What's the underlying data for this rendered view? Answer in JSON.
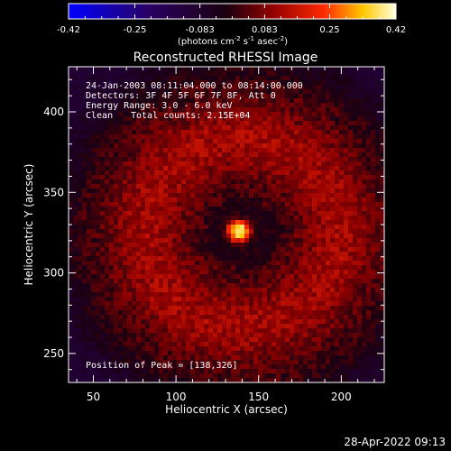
{
  "chart_data": {
    "type": "heatmap",
    "title": "Reconstructed RHESSI Image",
    "xlabel": "Heliocentric X (arcsec)",
    "ylabel": "Heliocentric Y (arcsec)",
    "xlim": [
      35,
      226
    ],
    "ylim": [
      232,
      428
    ],
    "x_ticks": [
      50,
      100,
      150,
      200
    ],
    "y_ticks": [
      250,
      300,
      350,
      400
    ],
    "colorbar": {
      "min": -0.42,
      "max": 0.42,
      "ticks": [
        "-0.42",
        "-0.25",
        "-0.083",
        "0.083",
        "0.25",
        "0.42"
      ],
      "tick_values": [
        -0.42,
        -0.25,
        -0.083,
        0.083,
        0.25,
        0.42
      ],
      "units_prefix": "(photons cm",
      "units_sup1": "-2",
      "units_mid1": " s",
      "units_sup2": "-1",
      "units_mid2": " asec",
      "units_sup3": "-2",
      "units_suffix": ")"
    },
    "annotations": {
      "time_range": "24-Jan-2003 08:11:04.000 to 08:14:00.000",
      "detectors": "Detectors: 3F 4F 5F 6F 7F 8F, Att 0",
      "energy_range": "Energy Range: 3.0 - 6.0 keV",
      "method": "Clean",
      "total_counts": "Total counts: 2.15E+04",
      "peak_position": "Position of Peak = [138,326]"
    },
    "peak": {
      "x": 138,
      "y": 326,
      "value": 0.42
    },
    "background_ring": {
      "center_x": 140,
      "center_y": 325,
      "radius": 58,
      "value": 0.12
    },
    "off_disk_value": -0.09,
    "tick_color": "#ffffff"
  },
  "footer": {
    "timestamp": "28-Apr-2022 09:13"
  }
}
